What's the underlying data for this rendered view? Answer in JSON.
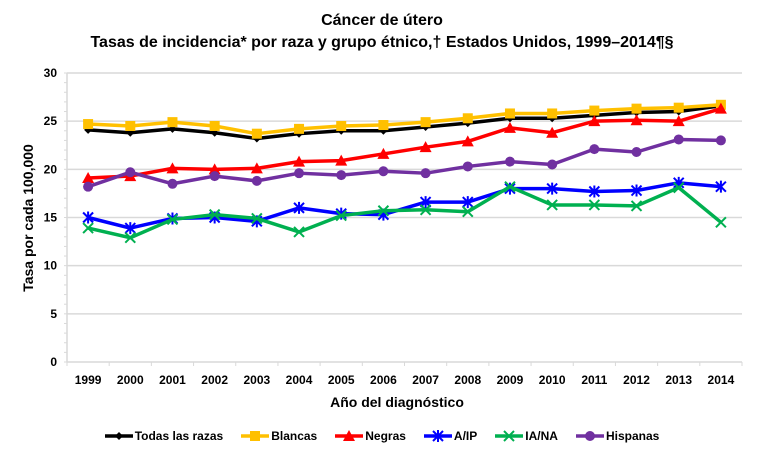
{
  "chart_data": {
    "type": "line",
    "title": "Cáncer de útero",
    "subtitle": "Tasas de incidencia* por raza y grupo étnico,† Estados Unidos, 1999–2014¶§",
    "xlabel": "Año del diagnóstico",
    "ylabel": "Tasa por cada 100,000",
    "ylim": [
      0,
      30
    ],
    "yticks": [
      0,
      5,
      10,
      15,
      20,
      25,
      30
    ],
    "grid": true,
    "legend_position": "bottom",
    "x": [
      "1999",
      "2000",
      "2001",
      "2002",
      "2003",
      "2004",
      "2005",
      "2006",
      "2007",
      "2008",
      "2009",
      "2010",
      "2011",
      "2012",
      "2013",
      "2014"
    ],
    "series": [
      {
        "name": "Todas las razas",
        "color": "#000000",
        "marker": "diamond",
        "values": [
          24.1,
          23.8,
          24.2,
          23.8,
          23.2,
          23.7,
          24.0,
          24.0,
          24.4,
          24.8,
          25.3,
          25.3,
          25.6,
          25.9,
          26.0,
          26.6
        ]
      },
      {
        "name": "Blancas",
        "color": "#FFC000",
        "marker": "square",
        "values": [
          24.7,
          24.5,
          24.9,
          24.5,
          23.7,
          24.2,
          24.5,
          24.6,
          24.9,
          25.3,
          25.8,
          25.8,
          26.1,
          26.3,
          26.4,
          26.7
        ]
      },
      {
        "name": "Negras",
        "color": "#FF0000",
        "marker": "triangle",
        "values": [
          19.1,
          19.3,
          20.1,
          20.0,
          20.1,
          20.8,
          20.9,
          21.6,
          22.3,
          22.9,
          24.3,
          23.8,
          25.0,
          25.1,
          25.0,
          26.3
        ]
      },
      {
        "name": "A/IP",
        "color": "#0000FF",
        "marker": "star",
        "values": [
          15.0,
          13.9,
          14.9,
          15.0,
          14.6,
          16.0,
          15.4,
          15.3,
          16.6,
          16.6,
          18.0,
          18.0,
          17.7,
          17.8,
          18.6,
          18.2
        ]
      },
      {
        "name": "IA/NA",
        "color": "#00B050",
        "marker": "x",
        "values": [
          13.9,
          12.9,
          14.8,
          15.3,
          14.9,
          13.5,
          15.2,
          15.7,
          15.8,
          15.6,
          18.2,
          16.3,
          16.3,
          16.2,
          18.1,
          14.5
        ]
      },
      {
        "name": "Hispanas",
        "color": "#7030A0",
        "marker": "circle",
        "values": [
          18.2,
          19.7,
          18.5,
          19.3,
          18.8,
          19.6,
          19.4,
          19.8,
          19.6,
          20.3,
          20.8,
          20.5,
          22.1,
          21.8,
          23.1,
          23.0
        ]
      }
    ]
  }
}
